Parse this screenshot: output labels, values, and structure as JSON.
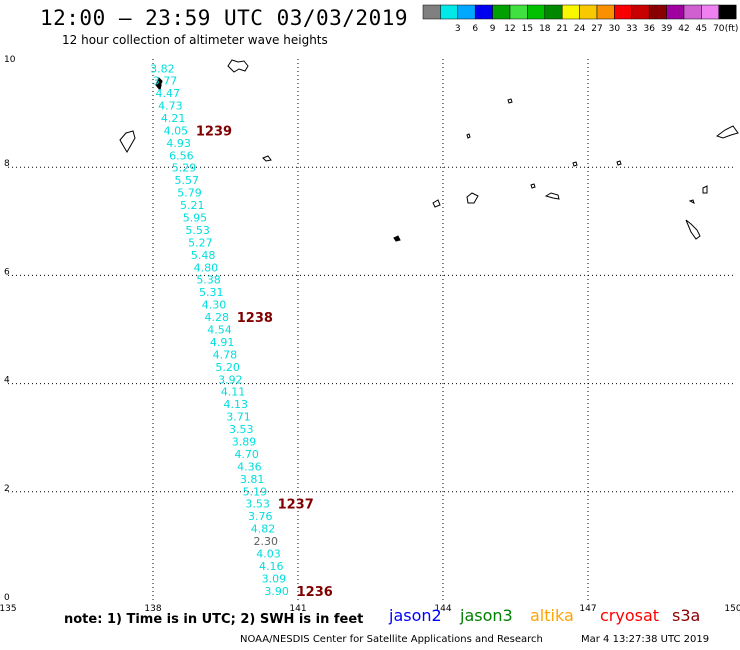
{
  "header": {
    "title": "12:00 – 23:59 UTC 03/03/2019",
    "subtitle": "12 hour collection of altimeter wave heights"
  },
  "scale": {
    "unit": "(ft)",
    "bins": [
      {
        "label": "",
        "color": "#808080"
      },
      {
        "label": "3",
        "color": "#00e8e8"
      },
      {
        "label": "6",
        "color": "#00a8ff"
      },
      {
        "label": "9",
        "color": "#0000f0"
      },
      {
        "label": "12",
        "color": "#00a000"
      },
      {
        "label": "15",
        "color": "#40e040"
      },
      {
        "label": "18",
        "color": "#00c000"
      },
      {
        "label": "21",
        "color": "#008800"
      },
      {
        "label": "24",
        "color": "#f8f800"
      },
      {
        "label": "27",
        "color": "#f8c800"
      },
      {
        "label": "30",
        "color": "#f89000"
      },
      {
        "label": "33",
        "color": "#f80000"
      },
      {
        "label": "36",
        "color": "#c80000"
      },
      {
        "label": "39",
        "color": "#880000"
      },
      {
        "label": "42",
        "color": "#a000a0"
      },
      {
        "label": "45",
        "color": "#d060d0"
      },
      {
        "label": "70",
        "color": "#f080f0"
      },
      {
        "label": "",
        "color": "#000000"
      }
    ]
  },
  "axes": {
    "x_ticks": [
      "135",
      "138",
      "141",
      "144",
      "147",
      "150"
    ],
    "y_ticks": [
      "0",
      "2",
      "4",
      "6",
      "8",
      "10"
    ]
  },
  "track": {
    "color": "#00dede",
    "readings": [
      {
        "lat": 9.82,
        "value": "3.82"
      },
      {
        "lat": 9.6,
        "value": "3.77"
      },
      {
        "lat": 9.37,
        "value": "4.47"
      },
      {
        "lat": 9.14,
        "value": "4.73"
      },
      {
        "lat": 8.91,
        "value": "4.21"
      },
      {
        "lat": 8.68,
        "value": "4.05"
      },
      {
        "lat": 8.45,
        "value": "4.93"
      },
      {
        "lat": 8.22,
        "value": "6.56"
      },
      {
        "lat": 7.99,
        "value": "5.29"
      },
      {
        "lat": 7.76,
        "value": "5.57"
      },
      {
        "lat": 7.53,
        "value": "5.79"
      },
      {
        "lat": 7.3,
        "value": "5.21"
      },
      {
        "lat": 7.07,
        "value": "5.95"
      },
      {
        "lat": 6.84,
        "value": "5.53"
      },
      {
        "lat": 6.61,
        "value": "5.27"
      },
      {
        "lat": 6.38,
        "value": "5.48"
      },
      {
        "lat": 6.15,
        "value": "4.80"
      },
      {
        "lat": 5.92,
        "value": "5.38"
      },
      {
        "lat": 5.69,
        "value": "5.31"
      },
      {
        "lat": 5.46,
        "value": "4.30"
      },
      {
        "lat": 5.23,
        "value": "4.28"
      },
      {
        "lat": 5.0,
        "value": "4.54"
      },
      {
        "lat": 4.77,
        "value": "4.91"
      },
      {
        "lat": 4.54,
        "value": "4.78"
      },
      {
        "lat": 4.31,
        "value": "5.20"
      },
      {
        "lat": 4.08,
        "value": "3.92"
      },
      {
        "lat": 3.85,
        "value": "4.11"
      },
      {
        "lat": 3.62,
        "value": "4.13"
      },
      {
        "lat": 3.39,
        "value": "3.71"
      },
      {
        "lat": 3.16,
        "value": "3.53"
      },
      {
        "lat": 2.93,
        "value": "3.89"
      },
      {
        "lat": 2.7,
        "value": "4.70"
      },
      {
        "lat": 2.47,
        "value": "4.36"
      },
      {
        "lat": 2.24,
        "value": "3.81"
      },
      {
        "lat": 2.01,
        "value": "5.19"
      },
      {
        "lat": 1.78,
        "value": "3.53"
      },
      {
        "lat": 1.55,
        "value": "3.76"
      },
      {
        "lat": 1.32,
        "value": "4.82"
      },
      {
        "lat": 1.09,
        "value": "2.30",
        "color": "#606060"
      },
      {
        "lat": 0.86,
        "value": "4.03"
      },
      {
        "lat": 0.63,
        "value": "4.16"
      },
      {
        "lat": 0.4,
        "value": "3.09"
      },
      {
        "lat": 0.17,
        "value": "3.90"
      }
    ],
    "time_labels": [
      {
        "lat": 8.68,
        "label": "1239"
      },
      {
        "lat": 5.23,
        "label": "1238"
      },
      {
        "lat": 1.78,
        "label": "1237"
      },
      {
        "lat": 0.17,
        "label": "1236"
      }
    ],
    "time_label_color": "#800000"
  },
  "footer": {
    "note": "note: 1) Time is in UTC; 2) SWH is in feet",
    "missions": [
      {
        "name": "jason2",
        "color": "#0000ff"
      },
      {
        "name": "jason3",
        "color": "#008000"
      },
      {
        "name": "altika",
        "color": "#ffa500"
      },
      {
        "name": "cryosat",
        "color": "#ff0000"
      },
      {
        "name": "s3a",
        "color": "#8b0000"
      }
    ],
    "credit": "NOAA/NESDIS Center for Satellite Applications and Research",
    "timestamp": "Mar  4 13:27:38 UTC 2019"
  }
}
